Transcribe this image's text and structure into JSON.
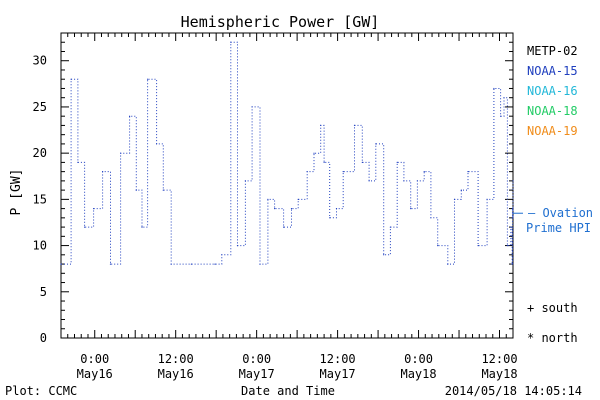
{
  "chart_data": {
    "type": "line",
    "title": "Hemispheric Power [GW]",
    "xlabel": "Date and Time",
    "ylabel": "P [GW]",
    "ylim": [
      0,
      33
    ],
    "y_ticks": [
      0,
      5,
      10,
      15,
      20,
      25,
      30
    ],
    "xlim": [
      "2014-05-15T19:00",
      "2014-05-18T14:00"
    ],
    "x_ticks": [
      {
        "t": "2014-05-16T00:00",
        "time": "0:00",
        "date": "May16"
      },
      {
        "t": "2014-05-16T12:00",
        "time": "12:00",
        "date": "May16"
      },
      {
        "t": "2014-05-17T00:00",
        "time": "0:00",
        "date": "May17"
      },
      {
        "t": "2014-05-17T12:00",
        "time": "12:00",
        "date": "May17"
      },
      {
        "t": "2014-05-18T00:00",
        "time": "0:00",
        "date": "May18"
      },
      {
        "t": "2014-05-18T12:00",
        "time": "12:00",
        "date": "May18"
      }
    ],
    "grid": false,
    "legend_position": "right",
    "legend": [
      {
        "name": "METP-02",
        "color": "#000000"
      },
      {
        "name": "NOAA-15",
        "color": "#1f3fbf"
      },
      {
        "name": "NOAA-16",
        "color": "#22b8d8"
      },
      {
        "name": "NOAA-18",
        "color": "#22cc66"
      },
      {
        "name": "NOAA-19",
        "color": "#f08c1a"
      }
    ],
    "ovation_label_line1": "— Ovation",
    "ovation_label_line2": "Prime HPI",
    "ovation_color": "#1f6fd0",
    "ovation_value": 13.5,
    "markers": [
      "+ south",
      "* north"
    ],
    "series": [
      {
        "name": "NOAA-15",
        "color": "#1f3fbf",
        "points": [
          [
            "2014-05-15T19:00",
            8
          ],
          [
            "2014-05-15T20:30",
            28
          ],
          [
            "2014-05-15T21:30",
            19
          ],
          [
            "2014-05-15T22:30",
            12
          ],
          [
            "2014-05-15T23:50",
            14
          ],
          [
            "2014-05-16T01:10",
            18
          ],
          [
            "2014-05-16T02:20",
            8
          ],
          [
            "2014-05-16T03:50",
            20
          ],
          [
            "2014-05-16T05:10",
            24
          ],
          [
            "2014-05-16T06:10",
            16
          ],
          [
            "2014-05-16T07:00",
            12
          ],
          [
            "2014-05-16T07:50",
            28
          ],
          [
            "2014-05-16T09:10",
            21
          ],
          [
            "2014-05-16T10:10",
            16
          ],
          [
            "2014-05-16T11:20",
            8
          ],
          [
            "2014-05-16T14:20",
            8
          ],
          [
            "2014-05-16T17:50",
            8
          ],
          [
            "2014-05-16T18:50",
            9
          ],
          [
            "2014-05-16T20:10",
            32
          ],
          [
            "2014-05-16T21:10",
            10
          ],
          [
            "2014-05-16T22:20",
            17
          ],
          [
            "2014-05-16T23:20",
            25
          ],
          [
            "2014-05-17T00:30",
            8
          ],
          [
            "2014-05-17T01:40",
            15
          ],
          [
            "2014-05-17T02:40",
            14
          ],
          [
            "2014-05-17T04:00",
            12
          ],
          [
            "2014-05-17T05:10",
            14
          ],
          [
            "2014-05-17T06:10",
            15
          ],
          [
            "2014-05-17T07:30",
            18
          ],
          [
            "2014-05-17T08:30",
            20
          ],
          [
            "2014-05-17T09:30",
            23
          ],
          [
            "2014-05-17T10:00",
            19
          ],
          [
            "2014-05-17T10:50",
            13
          ],
          [
            "2014-05-17T11:50",
            14
          ],
          [
            "2014-05-17T12:50",
            18
          ],
          [
            "2014-05-17T14:30",
            23
          ],
          [
            "2014-05-17T15:40",
            19
          ],
          [
            "2014-05-17T16:40",
            17
          ],
          [
            "2014-05-17T17:40",
            21
          ],
          [
            "2014-05-17T18:50",
            9
          ],
          [
            "2014-05-17T19:50",
            12
          ],
          [
            "2014-05-17T20:50",
            19
          ],
          [
            "2014-05-17T21:50",
            17
          ],
          [
            "2014-05-17T22:50",
            14
          ],
          [
            "2014-05-17T23:50",
            17
          ],
          [
            "2014-05-18T00:50",
            18
          ],
          [
            "2014-05-18T01:50",
            13
          ],
          [
            "2014-05-18T02:50",
            10
          ],
          [
            "2014-05-18T04:20",
            8
          ],
          [
            "2014-05-18T05:20",
            15
          ],
          [
            "2014-05-18T06:20",
            16
          ],
          [
            "2014-05-18T07:20",
            18
          ],
          [
            "2014-05-18T08:50",
            10
          ],
          [
            "2014-05-18T10:10",
            15
          ],
          [
            "2014-05-18T11:10",
            27
          ],
          [
            "2014-05-18T12:10",
            24
          ],
          [
            "2014-05-18T12:40",
            26
          ],
          [
            "2014-05-18T13:10",
            10
          ],
          [
            "2014-05-18T13:40",
            12
          ],
          [
            "2014-05-18T13:52",
            8
          ],
          [
            "2014-05-18T13:56",
            14
          ],
          [
            "2014-05-18T13:58",
            13
          ],
          [
            "2014-05-18T14:00",
            17
          ]
        ]
      }
    ]
  },
  "footer": {
    "plot_credit": "Plot: CCMC",
    "timestamp": "2014/05/18 14:05:14"
  }
}
